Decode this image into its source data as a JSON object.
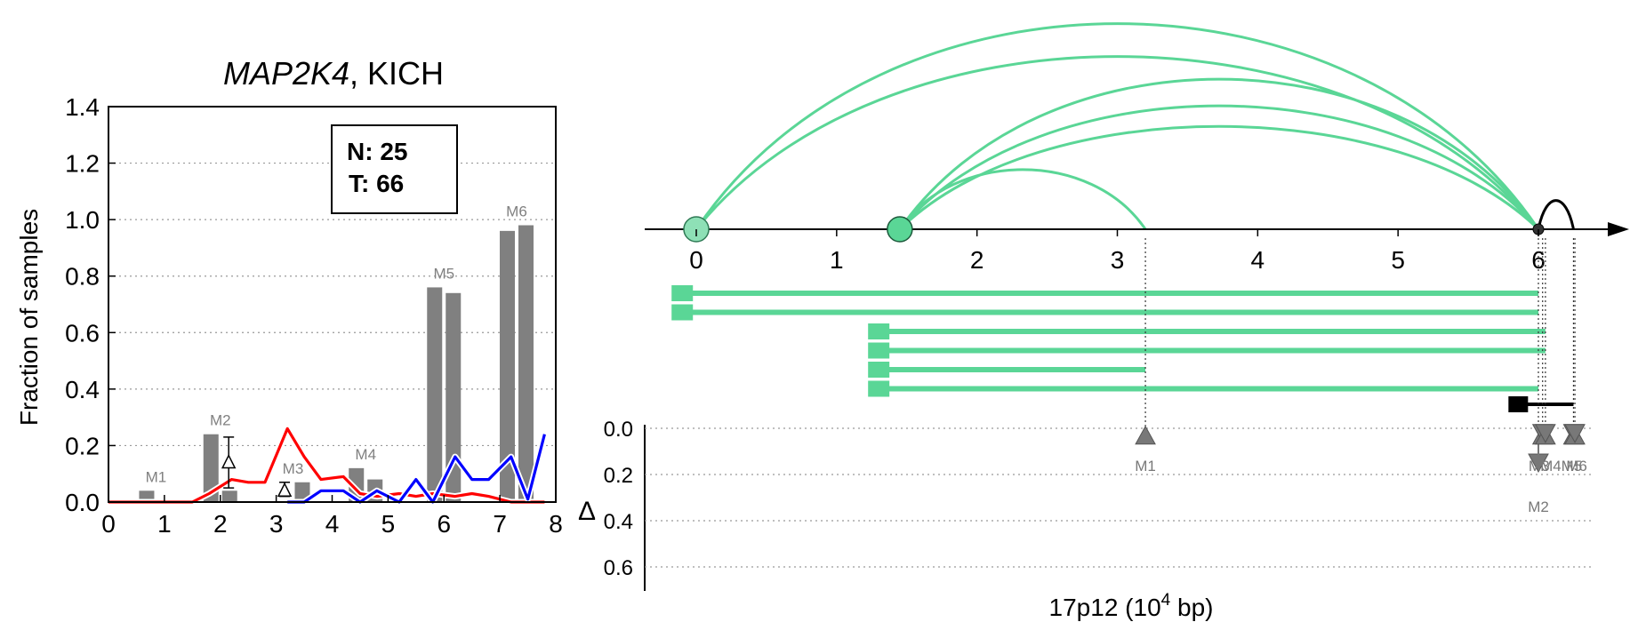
{
  "colors": {
    "bars": "#808080",
    "normal_line": "#0000ff",
    "tumor_line": "#ff0000",
    "arc": "#5ad696",
    "marker": "#787878",
    "frame": "#000000",
    "grid": "#999999"
  },
  "chart_data": [
    {
      "type": "bar",
      "title_gene": "MAP2K4",
      "title_rest": ", KICH",
      "ylabel": "Fraction of samples",
      "xlim": [
        0,
        8
      ],
      "ylim": [
        0,
        1.4
      ],
      "xticks": [
        "0",
        "1",
        "2",
        "3",
        "4",
        "5",
        "6",
        "7",
        "8"
      ],
      "yticks": [
        "0.0",
        "0.2",
        "0.4",
        "0.6",
        "0.8",
        "1.0",
        "1.2",
        "1.4"
      ],
      "grid": "horizontal dotted",
      "legend_box": {
        "normal_label": "N: 25",
        "tumor_label": "T: 66"
      },
      "bar_groups": [
        {
          "label": "M1",
          "x": 0.85,
          "values": [
            0.04,
            0.0
          ]
        },
        {
          "label": "M2",
          "x": 2.0,
          "values": [
            0.24,
            0.04
          ]
        },
        {
          "label": "M3",
          "x": 3.3,
          "values": [
            0.0,
            0.07
          ]
        },
        {
          "label": "M4",
          "x": 4.6,
          "values": [
            0.12,
            0.08
          ]
        },
        {
          "label": "M5",
          "x": 6.0,
          "values": [
            0.76,
            0.74
          ]
        },
        {
          "label": "M6",
          "x": 7.3,
          "values": [
            0.96,
            0.98
          ]
        }
      ],
      "delta_markers": [
        {
          "x": 2.15,
          "y": 0.14,
          "err_low": 0.05,
          "err_high": 0.23
        },
        {
          "x": 3.15,
          "y": 0.04,
          "err_low": 0.02,
          "err_high": 0.07
        }
      ],
      "series": [
        {
          "name": "T",
          "color": "#ff0000",
          "x": [
            0,
            1.5,
            1.8,
            2.2,
            2.5,
            2.8,
            3.2,
            3.5,
            3.8,
            4.2,
            4.5,
            4.8,
            5.2,
            5.5,
            5.8,
            6.2,
            6.5,
            6.8,
            7.2,
            7.5,
            7.8
          ],
          "y": [
            0,
            0,
            0.03,
            0.08,
            0.07,
            0.07,
            0.26,
            0.16,
            0.08,
            0.09,
            0.03,
            0.02,
            0.03,
            0.02,
            0.03,
            0.02,
            0.03,
            0.02,
            0.0,
            0.0,
            0.0
          ]
        },
        {
          "name": "N",
          "color": "#0000ff",
          "x": [
            3.2,
            3.5,
            3.8,
            4.2,
            4.5,
            4.8,
            5.2,
            5.5,
            5.8,
            6.2,
            6.5,
            6.8,
            7.2,
            7.5,
            7.8
          ],
          "y": [
            0,
            0,
            0.04,
            0.04,
            0.0,
            0.04,
            0.0,
            0.08,
            0.0,
            0.16,
            0.08,
            0.08,
            0.16,
            0.01,
            0.24
          ]
        }
      ]
    },
    {
      "type": "arc-diagram",
      "xlabel_main": "17p12 (10",
      "xlabel_exp": "4",
      "xlabel_tail": " bp)",
      "xlim": [
        -0.4,
        6.4
      ],
      "xticks": [
        "0",
        "1",
        "2",
        "3",
        "4",
        "5",
        "6"
      ],
      "delta_axis_label": "Δ",
      "delta_ylim": [
        0,
        0.7
      ],
      "delta_yticks": [
        "0.0",
        "0.2",
        "0.4",
        "0.6"
      ],
      "sites": [
        {
          "x": 0.0,
          "style": "light-circle"
        },
        {
          "x": 1.45,
          "style": "circle"
        },
        {
          "x": 6.0,
          "style": "dot"
        }
      ],
      "arcs": [
        {
          "from": 0.0,
          "to": 6.0,
          "height": 1.0
        },
        {
          "from": 0.0,
          "to": 6.0,
          "height": 0.84
        },
        {
          "from": 1.45,
          "to": 6.0,
          "height": 0.73
        },
        {
          "from": 1.45,
          "to": 6.0,
          "height": 0.6
        },
        {
          "from": 1.45,
          "to": 6.0,
          "height": 0.5
        },
        {
          "from": 1.45,
          "to": 3.2,
          "height": 0.29
        },
        {
          "from": 6.0,
          "to": 6.25,
          "height": 0.14,
          "color": "#000000"
        }
      ],
      "transcripts": [
        {
          "start": -0.1,
          "end": 6.0
        },
        {
          "start": -0.1,
          "end": 6.0
        },
        {
          "start": 1.3,
          "end": 6.05
        },
        {
          "start": 1.3,
          "end": 6.05
        },
        {
          "start": 1.3,
          "end": 3.2
        },
        {
          "start": 1.3,
          "end": 6.0
        }
      ],
      "black_transcript": {
        "start": 5.85,
        "end": 6.25
      },
      "modules": [
        {
          "label": "M1",
          "x": 3.2,
          "delta": 0.03,
          "dir": "up"
        },
        {
          "label": "M2",
          "x": 6.0,
          "delta": 0.15,
          "dir": "down"
        },
        {
          "label": "M3",
          "x": 6.03,
          "delta": 0.03,
          "dir": "both"
        },
        {
          "label": "M4",
          "x": 6.05,
          "delta": 0.03,
          "dir": "both"
        },
        {
          "label": "M5",
          "x": 6.25,
          "delta": 0.03,
          "dir": "both"
        },
        {
          "label": "M6",
          "x": 6.26,
          "delta": 0.03,
          "dir": "both"
        }
      ]
    }
  ]
}
